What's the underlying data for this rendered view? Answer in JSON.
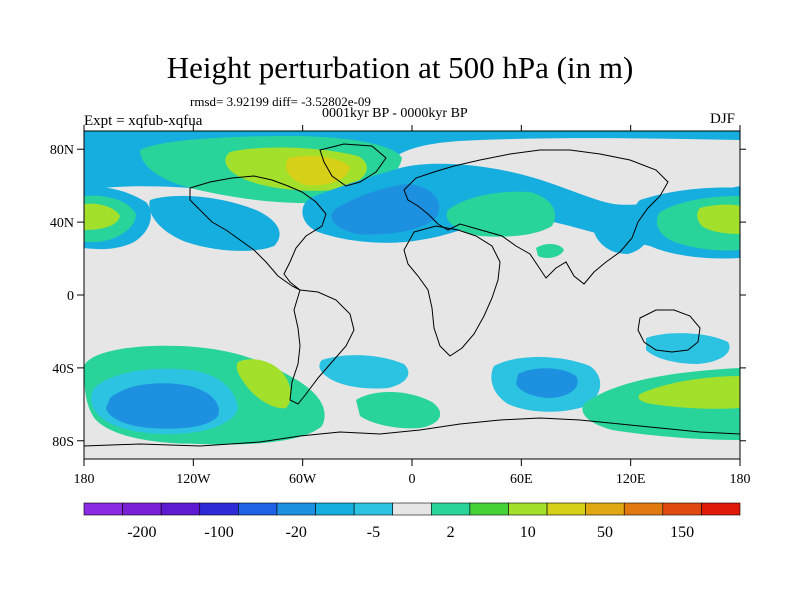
{
  "title": "Height perturbation at 500 hPa (in m)",
  "stats": "rmsd= 3.92199 diff= -3.52802e-09",
  "period": "0001kyr BP - 0000kyr BP",
  "experiment": "Expt = xqfub-xqfua",
  "season": "DJF",
  "map": {
    "projection": "cylindrical-equidistant",
    "lon_range": [
      -180,
      180
    ],
    "lat_range": [
      -90,
      90
    ],
    "background_color": "#e6e6e6",
    "lon_ticks": [
      {
        "value": -180,
        "label": "180"
      },
      {
        "value": -120,
        "label": "120W"
      },
      {
        "value": -60,
        "label": "60W"
      },
      {
        "value": 0,
        "label": "0"
      },
      {
        "value": 60,
        "label": "60E"
      },
      {
        "value": 120,
        "label": "120E"
      },
      {
        "value": 180,
        "label": "180"
      }
    ],
    "lat_ticks": [
      {
        "value": 80,
        "label": "80N"
      },
      {
        "value": 40,
        "label": "40N"
      },
      {
        "value": 0,
        "label": "0"
      },
      {
        "value": -40,
        "label": "40S"
      },
      {
        "value": -80,
        "label": "80S"
      }
    ]
  },
  "colorbar": {
    "colors": [
      "#8a2be2",
      "#7a21d6",
      "#5e1ad0",
      "#2f2ad8",
      "#1f62e6",
      "#1e90e0",
      "#16aede",
      "#2cc2e2",
      "#e6e6e6",
      "#28d49a",
      "#44d238",
      "#a2e02c",
      "#d6d018",
      "#e0a812",
      "#e07a10",
      "#e04a10",
      "#e01a0a"
    ],
    "labels": [
      "-200",
      "-100",
      "-20",
      "-5",
      "2",
      "10",
      "50",
      "150"
    ]
  }
}
